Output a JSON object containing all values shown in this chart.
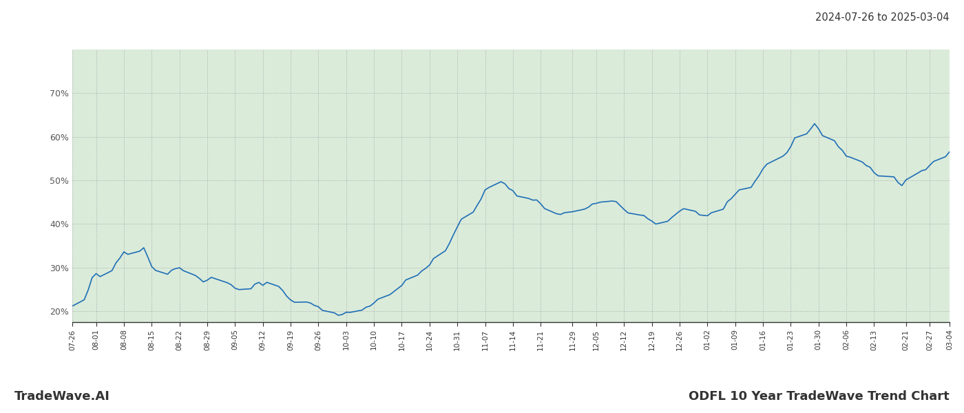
{
  "title_date_range": "2024-07-26 to 2025-03-04",
  "footer_left": "TradeWave.AI",
  "footer_right": "ODFL 10 Year TradeWave Trend Chart",
  "bg_color": "#ffffff",
  "line_color": "#1f6eb5",
  "shade_color": "#d4e8d4",
  "shade_alpha": 0.85,
  "shade_start": "2024-07-26",
  "shade_end": "2025-03-05",
  "ylim": [
    0.175,
    0.8
  ],
  "yticks": [
    0.2,
    0.3,
    0.4,
    0.5,
    0.6,
    0.7
  ],
  "dates": [
    "2024-07-26",
    "2024-07-29",
    "2024-07-30",
    "2024-07-31",
    "2024-08-01",
    "2024-08-02",
    "2024-08-05",
    "2024-08-06",
    "2024-08-07",
    "2024-08-08",
    "2024-08-09",
    "2024-08-12",
    "2024-08-13",
    "2024-08-14",
    "2024-08-15",
    "2024-08-16",
    "2024-08-19",
    "2024-08-20",
    "2024-08-21",
    "2024-08-22",
    "2024-08-23",
    "2024-08-26",
    "2024-08-27",
    "2024-08-28",
    "2024-08-29",
    "2024-08-30",
    "2024-09-03",
    "2024-09-04",
    "2024-09-05",
    "2024-09-06",
    "2024-09-09",
    "2024-09-10",
    "2024-09-11",
    "2024-09-12",
    "2024-09-13",
    "2024-09-16",
    "2024-09-17",
    "2024-09-18",
    "2024-09-19",
    "2024-09-20",
    "2024-09-23",
    "2024-09-24",
    "2024-09-25",
    "2024-09-26",
    "2024-09-27",
    "2024-09-30",
    "2024-10-01",
    "2024-10-02",
    "2024-10-03",
    "2024-10-04",
    "2024-10-07",
    "2024-10-08",
    "2024-10-09",
    "2024-10-10",
    "2024-10-11",
    "2024-10-14",
    "2024-10-15",
    "2024-10-16",
    "2024-10-17",
    "2024-10-18",
    "2024-10-21",
    "2024-10-22",
    "2024-10-23",
    "2024-10-24",
    "2024-10-25",
    "2024-10-28",
    "2024-10-29",
    "2024-10-30",
    "2024-10-31",
    "2024-11-01",
    "2024-11-04",
    "2024-11-05",
    "2024-11-06",
    "2024-11-07",
    "2024-11-08",
    "2024-11-11",
    "2024-11-12",
    "2024-11-13",
    "2024-11-14",
    "2024-11-15",
    "2024-11-18",
    "2024-11-19",
    "2024-11-20",
    "2024-11-21",
    "2024-11-22",
    "2024-11-25",
    "2024-11-26",
    "2024-11-27",
    "2024-11-29",
    "2024-12-02",
    "2024-12-03",
    "2024-12-04",
    "2024-12-05",
    "2024-12-06",
    "2024-12-09",
    "2024-12-10",
    "2024-12-11",
    "2024-12-12",
    "2024-12-13",
    "2024-12-16",
    "2024-12-17",
    "2024-12-18",
    "2024-12-19",
    "2024-12-20",
    "2024-12-23",
    "2024-12-24",
    "2024-12-26",
    "2024-12-27",
    "2024-12-30",
    "2024-12-31",
    "2025-01-02",
    "2025-01-03",
    "2025-01-06",
    "2025-01-07",
    "2025-01-08",
    "2025-01-09",
    "2025-01-10",
    "2025-01-13",
    "2025-01-14",
    "2025-01-15",
    "2025-01-16",
    "2025-01-17",
    "2025-01-21",
    "2025-01-22",
    "2025-01-23",
    "2025-01-24",
    "2025-01-27",
    "2025-01-28",
    "2025-01-29",
    "2025-01-30",
    "2025-01-31",
    "2025-02-03",
    "2025-02-04",
    "2025-02-05",
    "2025-02-06",
    "2025-02-07",
    "2025-02-10",
    "2025-02-11",
    "2025-02-12",
    "2025-02-13",
    "2025-02-14",
    "2025-02-18",
    "2025-02-19",
    "2025-02-20",
    "2025-02-21",
    "2025-02-24",
    "2025-02-25",
    "2025-02-26",
    "2025-02-27",
    "2025-02-28",
    "2025-03-03",
    "2025-03-04"
  ],
  "values": [
    0.21,
    0.225,
    0.245,
    0.268,
    0.278,
    0.272,
    0.28,
    0.295,
    0.308,
    0.32,
    0.316,
    0.325,
    0.332,
    0.318,
    0.302,
    0.295,
    0.29,
    0.298,
    0.305,
    0.312,
    0.3,
    0.29,
    0.283,
    0.28,
    0.286,
    0.292,
    0.284,
    0.278,
    0.272,
    0.27,
    0.274,
    0.278,
    0.282,
    0.279,
    0.283,
    0.278,
    0.268,
    0.262,
    0.258,
    0.252,
    0.25,
    0.247,
    0.242,
    0.24,
    0.237,
    0.234,
    0.23,
    0.228,
    0.232,
    0.238,
    0.242,
    0.25,
    0.255,
    0.26,
    0.265,
    0.272,
    0.282,
    0.29,
    0.296,
    0.305,
    0.318,
    0.328,
    0.338,
    0.35,
    0.362,
    0.375,
    0.392,
    0.408,
    0.425,
    0.445,
    0.46,
    0.47,
    0.485,
    0.5,
    0.515,
    0.525,
    0.52,
    0.51,
    0.505,
    0.5,
    0.495,
    0.49,
    0.485,
    0.478,
    0.47,
    0.46,
    0.455,
    0.458,
    0.462,
    0.466,
    0.47,
    0.474,
    0.478,
    0.482,
    0.486,
    0.49,
    0.48,
    0.47,
    0.462,
    0.458,
    0.462,
    0.456,
    0.452,
    0.448,
    0.455,
    0.462,
    0.47,
    0.475,
    0.468,
    0.46,
    0.465,
    0.472,
    0.48,
    0.488,
    0.496,
    0.505,
    0.515,
    0.525,
    0.535,
    0.545,
    0.558,
    0.572,
    0.585,
    0.598,
    0.61,
    0.622,
    0.635,
    0.648,
    0.66,
    0.65,
    0.64,
    0.628,
    0.618,
    0.608,
    0.598,
    0.59,
    0.582,
    0.575,
    0.568,
    0.56,
    0.552,
    0.545,
    0.538,
    0.53,
    0.542,
    0.555,
    0.565,
    0.572,
    0.58,
    0.588,
    0.598,
    0.608
  ],
  "tick_labels": [
    "07-26",
    "08-01",
    "08-08",
    "08-15",
    "08-22",
    "08-29",
    "09-05",
    "09-12",
    "09-19",
    "09-26",
    "10-03",
    "10-10",
    "10-17",
    "10-24",
    "10-31",
    "11-07",
    "11-14",
    "11-21",
    "11-29",
    "12-05",
    "12-12",
    "12-19",
    "12-26",
    "01-02",
    "01-09",
    "01-16",
    "01-23",
    "01-30",
    "02-06",
    "02-13",
    "02-21",
    "02-27",
    "03-04"
  ],
  "tick_dates": [
    "2024-07-26",
    "2024-08-01",
    "2024-08-08",
    "2024-08-15",
    "2024-08-22",
    "2024-08-29",
    "2024-09-05",
    "2024-09-12",
    "2024-09-19",
    "2024-09-26",
    "2024-10-03",
    "2024-10-10",
    "2024-10-17",
    "2024-10-24",
    "2024-10-31",
    "2024-11-07",
    "2024-11-14",
    "2024-11-21",
    "2024-11-29",
    "2024-12-05",
    "2024-12-12",
    "2024-12-19",
    "2024-12-26",
    "2025-01-02",
    "2025-01-09",
    "2025-01-16",
    "2025-01-23",
    "2025-01-30",
    "2025-02-06",
    "2025-02-13",
    "2025-02-21",
    "2025-02-27",
    "2025-03-04"
  ]
}
